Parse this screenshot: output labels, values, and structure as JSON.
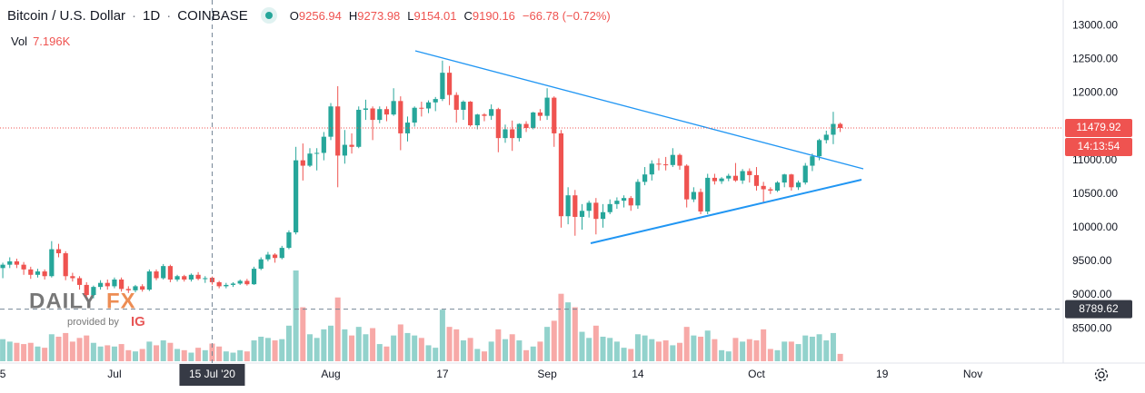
{
  "chart_data": {
    "type": "candlestick",
    "title": "Bitcoin / U.S. Dollar",
    "interval": "1D",
    "exchange": "COINBASE",
    "ohlc_letters": [
      "O",
      "H",
      "L",
      "C"
    ],
    "change_label": "−66.78 (−0.72%)",
    "vol_title": "Vol",
    "vol_value_label": "7.196K",
    "up_color": "#26a69a",
    "down_color": "#ef5350",
    "grid": false,
    "ylim": [
      7990,
      13380
    ],
    "yticks": [
      {
        "value": 8500,
        "label": "8500.00"
      },
      {
        "value": 9000,
        "label": "9000.00"
      },
      {
        "value": 9500,
        "label": "9500.00"
      },
      {
        "value": 10000,
        "label": "10000.00"
      },
      {
        "value": 10500,
        "label": "10500.00"
      },
      {
        "value": 11000,
        "label": "11000.00"
      },
      {
        "value": 11500,
        "label": "11500.00"
      },
      {
        "value": 12000,
        "label": "12000.00"
      },
      {
        "value": 12500,
        "label": "12500.00"
      },
      {
        "value": 13000,
        "label": "13000.00"
      }
    ],
    "xlim": [
      -0.4,
      151.95
    ],
    "xticks": [
      {
        "value": 0,
        "label": "5"
      },
      {
        "value": 16,
        "label": "Jul"
      },
      {
        "value": 47,
        "label": "Aug"
      },
      {
        "value": 63,
        "label": "17"
      },
      {
        "value": 78,
        "label": "Sep"
      },
      {
        "value": 91,
        "label": "14"
      },
      {
        "value": 108,
        "label": "Oct"
      },
      {
        "value": 126,
        "label": "19"
      },
      {
        "value": 139,
        "label": "Nov"
      }
    ],
    "ohlc": [
      [
        9400,
        9480,
        9250,
        9450
      ],
      [
        9450,
        9560,
        9400,
        9500
      ],
      [
        9500,
        9540,
        9400,
        9450
      ],
      [
        9450,
        9490,
        9300,
        9380
      ],
      [
        9380,
        9420,
        9240,
        9300
      ],
      [
        9300,
        9390,
        9260,
        9350
      ],
      [
        9350,
        9380,
        9230,
        9280
      ],
      [
        9280,
        9800,
        9260,
        9680
      ],
      [
        9680,
        9760,
        9560,
        9620
      ],
      [
        9620,
        9650,
        9220,
        9280
      ],
      [
        9280,
        9330,
        9200,
        9250
      ],
      [
        9250,
        9280,
        9080,
        9150
      ],
      [
        9150,
        9190,
        8970,
        9000
      ],
      [
        9000,
        9140,
        8950,
        9120
      ],
      [
        9120,
        9220,
        9080,
        9180
      ],
      [
        9180,
        9230,
        9080,
        9130
      ],
      [
        9130,
        9260,
        9100,
        9230
      ],
      [
        9230,
        9260,
        9050,
        9090
      ],
      [
        9090,
        9130,
        9030,
        9070
      ],
      [
        9070,
        9150,
        9040,
        9130
      ],
      [
        9130,
        9160,
        9050,
        9080
      ],
      [
        9080,
        9380,
        9060,
        9350
      ],
      [
        9350,
        9380,
        9220,
        9250
      ],
      [
        9250,
        9460,
        9230,
        9430
      ],
      [
        9430,
        9450,
        9190,
        9230
      ],
      [
        9230,
        9300,
        9200,
        9280
      ],
      [
        9280,
        9300,
        9200,
        9230
      ],
      [
        9230,
        9320,
        9200,
        9300
      ],
      [
        9300,
        9340,
        9220,
        9240
      ],
      [
        9240,
        9280,
        9180,
        9250
      ],
      [
        9256.94,
        9273.98,
        9154.01,
        9190.16
      ],
      [
        9190,
        9210,
        9100,
        9130
      ],
      [
        9130,
        9180,
        9100,
        9150
      ],
      [
        9150,
        9190,
        9120,
        9170
      ],
      [
        9170,
        9230,
        9150,
        9210
      ],
      [
        9210,
        9240,
        9140,
        9160
      ],
      [
        9160,
        9420,
        9150,
        9390
      ],
      [
        9390,
        9560,
        9370,
        9530
      ],
      [
        9530,
        9640,
        9500,
        9600
      ],
      [
        9600,
        9620,
        9480,
        9550
      ],
      [
        9550,
        9730,
        9530,
        9700
      ],
      [
        9700,
        9960,
        9680,
        9930
      ],
      [
        9930,
        11200,
        9900,
        11000
      ],
      [
        11000,
        11250,
        10700,
        10920
      ],
      [
        10920,
        11180,
        10900,
        11100
      ],
      [
        11100,
        11180,
        10850,
        11110
      ],
      [
        11110,
        11420,
        11000,
        11350
      ],
      [
        11350,
        11850,
        11300,
        11800
      ],
      [
        11800,
        12100,
        10600,
        11070
      ],
      [
        11070,
        11450,
        10950,
        11230
      ],
      [
        11230,
        11400,
        11100,
        11200
      ],
      [
        11200,
        11800,
        11180,
        11750
      ],
      [
        11750,
        11900,
        11600,
        11770
      ],
      [
        11770,
        11800,
        11300,
        11600
      ],
      [
        11600,
        11800,
        11550,
        11760
      ],
      [
        11760,
        11800,
        11580,
        11680
      ],
      [
        11680,
        12070,
        11660,
        11880
      ],
      [
        11880,
        11950,
        11150,
        11400
      ],
      [
        11400,
        11650,
        11280,
        11560
      ],
      [
        11560,
        11800,
        11500,
        11780
      ],
      [
        11780,
        11870,
        11650,
        11770
      ],
      [
        11770,
        11890,
        11700,
        11860
      ],
      [
        11860,
        11940,
        11730,
        11910
      ],
      [
        11910,
        12480,
        11880,
        12300
      ],
      [
        12300,
        12400,
        11820,
        11970
      ],
      [
        11970,
        12010,
        11560,
        11750
      ],
      [
        11750,
        11890,
        11600,
        11870
      ],
      [
        11870,
        11880,
        11500,
        11520
      ],
      [
        11520,
        11690,
        11460,
        11680
      ],
      [
        11680,
        11700,
        11580,
        11660
      ],
      [
        11660,
        11830,
        11600,
        11760
      ],
      [
        11760,
        11780,
        11120,
        11330
      ],
      [
        11330,
        11530,
        11260,
        11460
      ],
      [
        11460,
        11590,
        11140,
        11330
      ],
      [
        11330,
        11550,
        11280,
        11540
      ],
      [
        11540,
        11580,
        11420,
        11480
      ],
      [
        11480,
        11720,
        11460,
        11710
      ],
      [
        11710,
        11760,
        11590,
        11660
      ],
      [
        11660,
        12070,
        11600,
        11930
      ],
      [
        11930,
        11950,
        11200,
        11400
      ],
      [
        11400,
        11450,
        10000,
        10170
      ],
      [
        10170,
        10600,
        10050,
        10480
      ],
      [
        10480,
        10560,
        9880,
        10160
      ],
      [
        10160,
        10350,
        9970,
        10250
      ],
      [
        10250,
        10400,
        10150,
        10370
      ],
      [
        10370,
        10440,
        9900,
        10130
      ],
      [
        10130,
        10350,
        10000,
        10230
      ],
      [
        10230,
        10420,
        10200,
        10350
      ],
      [
        10350,
        10450,
        10280,
        10400
      ],
      [
        10400,
        10480,
        10300,
        10440
      ],
      [
        10440,
        10470,
        10250,
        10330
      ],
      [
        10330,
        10720,
        10280,
        10680
      ],
      [
        10680,
        10900,
        10630,
        10790
      ],
      [
        10790,
        11000,
        10700,
        10950
      ],
      [
        10950,
        11030,
        10850,
        10940
      ],
      [
        10940,
        11050,
        10850,
        10930
      ],
      [
        10930,
        11180,
        10900,
        11080
      ],
      [
        11080,
        11100,
        10860,
        10920
      ],
      [
        10920,
        10940,
        10300,
        10420
      ],
      [
        10420,
        10600,
        10380,
        10530
      ],
      [
        10530,
        10580,
        10200,
        10240
      ],
      [
        10240,
        10800,
        10200,
        10740
      ],
      [
        10740,
        10800,
        10640,
        10690
      ],
      [
        10690,
        10750,
        10650,
        10730
      ],
      [
        10730,
        10800,
        10690,
        10770
      ],
      [
        10770,
        10960,
        10680,
        10700
      ],
      [
        10700,
        10870,
        10650,
        10840
      ],
      [
        10840,
        10880,
        10670,
        10780
      ],
      [
        10780,
        10900,
        10550,
        10620
      ],
      [
        10620,
        10680,
        10360,
        10570
      ],
      [
        10570,
        10600,
        10500,
        10550
      ],
      [
        10550,
        10690,
        10530,
        10670
      ],
      [
        10670,
        10800,
        10600,
        10790
      ],
      [
        10790,
        10800,
        10550,
        10600
      ],
      [
        10600,
        10700,
        10560,
        10670
      ],
      [
        10670,
        10960,
        10640,
        10920
      ],
      [
        10920,
        11100,
        10840,
        11060
      ],
      [
        11060,
        11320,
        11000,
        11300
      ],
      [
        11300,
        11440,
        11250,
        11380
      ],
      [
        11380,
        11720,
        11240,
        11540
      ],
      [
        11540,
        11560,
        11420,
        11479.92
      ]
    ],
    "volume": [
      9000,
      8000,
      7500,
      7000,
      7500,
      6000,
      5500,
      11000,
      10000,
      11500,
      8000,
      9500,
      10500,
      7500,
      6000,
      6500,
      6000,
      7000,
      4500,
      4000,
      5000,
      8000,
      6500,
      8500,
      7500,
      5000,
      4500,
      3500,
      5500,
      4500,
      7196,
      6000,
      4000,
      3500,
      4500,
      4000,
      8500,
      10000,
      9500,
      8500,
      9000,
      14500,
      37000,
      22000,
      11000,
      9500,
      13000,
      14500,
      26000,
      13000,
      10500,
      14000,
      11000,
      13500,
      7000,
      6000,
      10500,
      15000,
      11500,
      10500,
      9500,
      6500,
      5500,
      21000,
      14000,
      13000,
      8500,
      9500,
      5000,
      4000,
      8000,
      13000,
      9000,
      11000,
      8500,
      4500,
      6000,
      8000,
      14000,
      16500,
      27500,
      24000,
      22000,
      12000,
      9500,
      14500,
      10000,
      9500,
      8000,
      5500,
      5000,
      11000,
      10500,
      9000,
      8000,
      8500,
      6500,
      7500,
      14000,
      10500,
      10000,
      12500,
      9000,
      4500,
      4000,
      9500,
      8000,
      9000,
      8500,
      13000,
      5000,
      4500,
      8000,
      8000,
      7000,
      10500,
      10000,
      11000,
      8500,
      11500,
      3000
    ],
    "countdown_label": "14:13:54",
    "crosshair": {
      "x": 30,
      "price": 8789.62,
      "date_label": "15 Jul '20"
    },
    "watermark": {
      "brand_a": "DAILY",
      "brand_b": "FX",
      "provided": "provided by",
      "ig": "IG"
    }
  }
}
